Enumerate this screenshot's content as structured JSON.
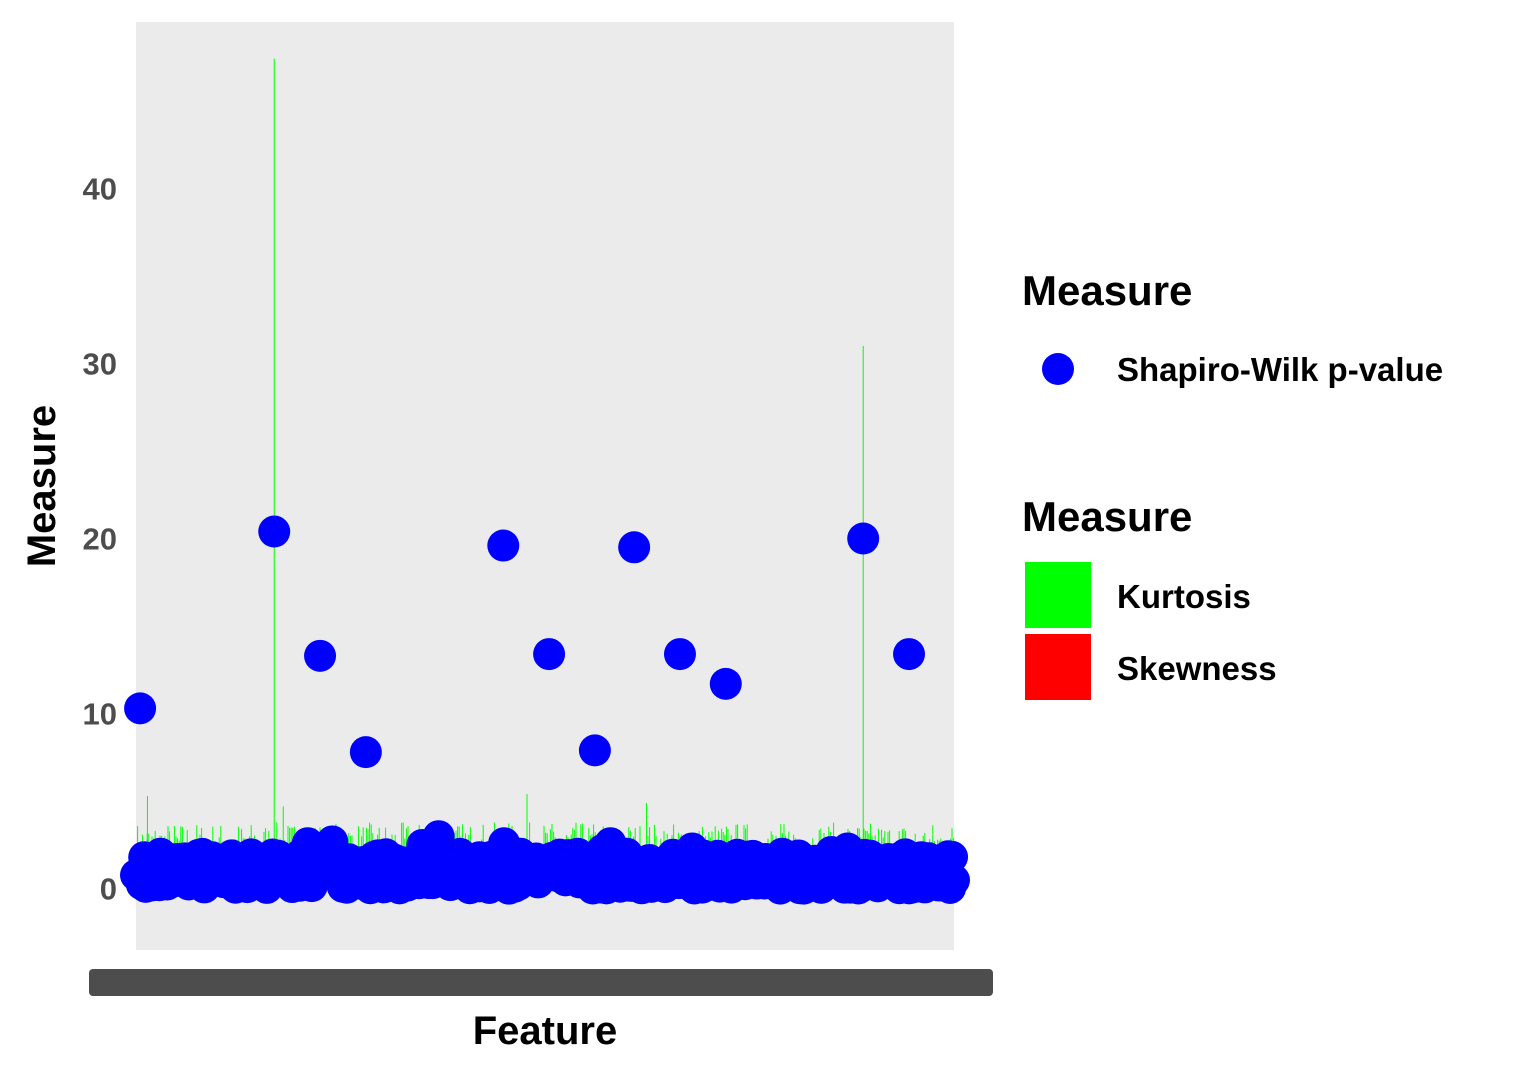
{
  "chart_data": {
    "type": "scatter",
    "xlabel": "Feature",
    "ylabel": "Measure",
    "ylim": [
      -3.5,
      49.5
    ],
    "y_ticks": [
      0,
      10,
      20,
      30,
      40
    ],
    "y_tick_labels": [
      "0",
      "10",
      "20",
      "30",
      "40"
    ],
    "x_tick_labels_overplotted": true,
    "grid": false,
    "panel_background": "#ebebeb",
    "legend_placement": "right",
    "legends": [
      {
        "title": "Measure",
        "entries": [
          {
            "label": "Shapiro-Wilk p-value",
            "shape": "point",
            "color": "#0000ff"
          }
        ]
      },
      {
        "title": "Measure",
        "entries": [
          {
            "label": "Kurtosis",
            "shape": "fill",
            "color": "#00ff00"
          },
          {
            "label": "Skewness",
            "shape": "fill",
            "color": "#ff0000"
          }
        ]
      }
    ],
    "series": [
      {
        "name": "Shapiro-Wilk p-value",
        "kind": "points",
        "color": "#0000ff",
        "x_fraction": [
          0.005,
          0.169,
          0.225,
          0.281,
          0.449,
          0.505,
          0.561,
          0.609,
          0.665,
          0.721,
          0.889,
          0.945,
          0.01,
          0.03,
          0.05,
          0.08,
          0.1,
          0.13,
          0.2,
          0.21,
          0.24,
          0.3,
          0.32,
          0.35,
          0.37,
          0.39,
          0.4,
          0.42,
          0.45,
          0.47,
          0.49,
          0.52,
          0.54,
          0.57,
          0.58,
          0.6,
          0.62,
          0.64,
          0.68,
          0.7,
          0.74,
          0.77,
          0.79,
          0.81,
          0.83,
          0.85,
          0.87,
          0.9,
          0.92,
          0.96,
          0.98
        ],
        "y": [
          10.3,
          20.4,
          13.3,
          7.8,
          19.6,
          13.4,
          7.9,
          19.5,
          13.4,
          11.7,
          20.0,
          13.4,
          1.8,
          2.0,
          1.7,
          1.9,
          1.6,
          1.5,
          1.9,
          2.6,
          2.7,
          1.6,
          1.4,
          2.5,
          3.0,
          1.5,
          1.7,
          1.8,
          2.6,
          2.0,
          1.6,
          1.8,
          2.0,
          2.2,
          2.6,
          2.0,
          1.5,
          1.4,
          2.3,
          1.7,
          1.8,
          1.7,
          2.0,
          1.9,
          1.6,
          2.1,
          2.3,
          1.5,
          1.7,
          1.8,
          1.6
        ],
        "dense_band": [
          0,
          2.0
        ]
      },
      {
        "name": "Kurtosis",
        "kind": "spikes",
        "color": "#00ff00",
        "peaks": [
          {
            "x_fraction": 0.169,
            "y": 47.4
          },
          {
            "x_fraction": 0.889,
            "y": 31.0
          },
          {
            "x_fraction": 0.014,
            "y": 5.3
          },
          {
            "x_fraction": 0.478,
            "y": 5.4
          },
          {
            "x_fraction": 0.624,
            "y": 4.9
          },
          {
            "x_fraction": 0.18,
            "y": 4.7
          }
        ],
        "typical_range": [
          2.0,
          3.8
        ]
      }
    ]
  }
}
